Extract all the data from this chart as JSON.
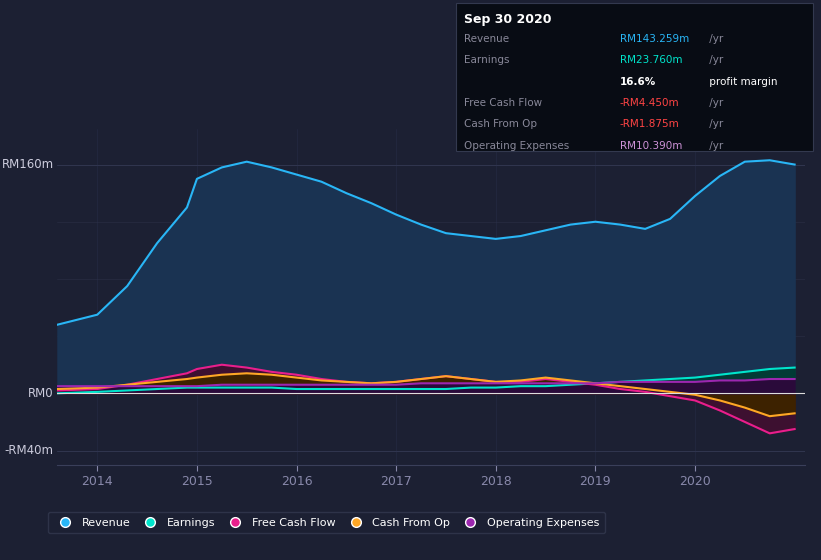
{
  "bg_color": "#1c2033",
  "plot_bg_color": "#1c2033",
  "ylim": [
    -50,
    185
  ],
  "xlim": [
    2013.6,
    2021.1
  ],
  "xticks": [
    2014,
    2015,
    2016,
    2017,
    2018,
    2019,
    2020
  ],
  "grid_color": "#2e3352",
  "hline_color": "#3a3f5a",
  "series": {
    "revenue": {
      "color": "#29b6f6",
      "fill_color": "#1a3352",
      "label": "Revenue",
      "x": [
        2013.6,
        2014.0,
        2014.3,
        2014.6,
        2014.9,
        2015.0,
        2015.25,
        2015.5,
        2015.75,
        2016.0,
        2016.25,
        2016.5,
        2016.75,
        2017.0,
        2017.25,
        2017.5,
        2017.75,
        2018.0,
        2018.25,
        2018.5,
        2018.75,
        2019.0,
        2019.25,
        2019.5,
        2019.75,
        2020.0,
        2020.25,
        2020.5,
        2020.75,
        2021.0
      ],
      "y": [
        48,
        55,
        75,
        105,
        130,
        150,
        158,
        162,
        158,
        153,
        148,
        140,
        133,
        125,
        118,
        112,
        110,
        108,
        110,
        114,
        118,
        120,
        118,
        115,
        122,
        138,
        152,
        162,
        163,
        160
      ]
    },
    "earnings": {
      "color": "#00e5cc",
      "fill_color": "#003d33",
      "label": "Earnings",
      "x": [
        2013.6,
        2014.0,
        2014.3,
        2014.6,
        2014.9,
        2015.0,
        2015.25,
        2015.5,
        2015.75,
        2016.0,
        2016.25,
        2016.5,
        2016.75,
        2017.0,
        2017.25,
        2017.5,
        2017.75,
        2018.0,
        2018.25,
        2018.5,
        2018.75,
        2019.0,
        2019.25,
        2019.5,
        2019.75,
        2020.0,
        2020.25,
        2020.5,
        2020.75,
        2021.0
      ],
      "y": [
        0,
        1,
        2,
        3,
        4,
        4,
        4,
        4,
        4,
        3,
        3,
        3,
        3,
        3,
        3,
        3,
        4,
        4,
        5,
        5,
        6,
        7,
        8,
        9,
        10,
        11,
        13,
        15,
        17,
        18
      ]
    },
    "free_cash_flow": {
      "color": "#e91e8c",
      "fill_color": "#3d1030",
      "label": "Free Cash Flow",
      "x": [
        2013.6,
        2014.0,
        2014.3,
        2014.6,
        2014.9,
        2015.0,
        2015.25,
        2015.5,
        2015.75,
        2016.0,
        2016.25,
        2016.5,
        2016.75,
        2017.0,
        2017.25,
        2017.5,
        2017.75,
        2018.0,
        2018.25,
        2018.5,
        2018.75,
        2019.0,
        2019.25,
        2019.5,
        2019.75,
        2020.0,
        2020.25,
        2020.5,
        2020.75,
        2021.0
      ],
      "y": [
        2,
        3,
        6,
        10,
        14,
        17,
        20,
        18,
        15,
        13,
        10,
        8,
        7,
        8,
        10,
        12,
        10,
        8,
        8,
        10,
        8,
        6,
        3,
        1,
        -2,
        -5,
        -12,
        -20,
        -28,
        -25
      ]
    },
    "cash_from_op": {
      "color": "#ffa726",
      "fill_color": "#3d2200",
      "label": "Cash From Op",
      "x": [
        2013.6,
        2014.0,
        2014.3,
        2014.6,
        2014.9,
        2015.0,
        2015.25,
        2015.5,
        2015.75,
        2016.0,
        2016.25,
        2016.5,
        2016.75,
        2017.0,
        2017.25,
        2017.5,
        2017.75,
        2018.0,
        2018.25,
        2018.5,
        2018.75,
        2019.0,
        2019.25,
        2019.5,
        2019.75,
        2020.0,
        2020.25,
        2020.5,
        2020.75,
        2021.0
      ],
      "y": [
        3,
        4,
        6,
        8,
        10,
        11,
        13,
        14,
        13,
        11,
        9,
        8,
        7,
        8,
        10,
        12,
        10,
        8,
        9,
        11,
        9,
        7,
        5,
        3,
        1,
        -1,
        -5,
        -10,
        -16,
        -14
      ]
    },
    "operating_expenses": {
      "color": "#9c27b0",
      "fill_color": "#2a0a3a",
      "label": "Operating Expenses",
      "x": [
        2013.6,
        2014.0,
        2014.3,
        2014.6,
        2014.9,
        2015.0,
        2015.25,
        2015.5,
        2015.75,
        2016.0,
        2016.25,
        2016.5,
        2016.75,
        2017.0,
        2017.25,
        2017.5,
        2017.75,
        2018.0,
        2018.25,
        2018.5,
        2018.75,
        2019.0,
        2019.25,
        2019.5,
        2019.75,
        2020.0,
        2020.25,
        2020.5,
        2020.75,
        2021.0
      ],
      "y": [
        5,
        5,
        5,
        5,
        5,
        5,
        6,
        6,
        6,
        6,
        6,
        6,
        6,
        6,
        7,
        7,
        7,
        7,
        7,
        7,
        7,
        7,
        8,
        8,
        8,
        8,
        9,
        9,
        10,
        10
      ]
    }
  },
  "legend": [
    {
      "label": "Revenue",
      "color": "#29b6f6"
    },
    {
      "label": "Earnings",
      "color": "#00e5cc"
    },
    {
      "label": "Free Cash Flow",
      "color": "#e91e8c"
    },
    {
      "label": "Cash From Op",
      "color": "#ffa726"
    },
    {
      "label": "Operating Expenses",
      "color": "#9c27b0"
    }
  ],
  "info_box_title": "Sep 30 2020",
  "info_rows": [
    {
      "label": "Revenue",
      "value": "RM143.259m",
      "suffix": " /yr",
      "value_color": "#29b6f6"
    },
    {
      "label": "Earnings",
      "value": "RM23.760m",
      "suffix": " /yr",
      "value_color": "#00e5cc"
    },
    {
      "label": "",
      "value": "16.6%",
      "suffix": " profit margin",
      "value_color": "#ffffff",
      "bold": true
    },
    {
      "label": "Free Cash Flow",
      "value": "-RM4.450m",
      "suffix": " /yr",
      "value_color": "#ff4444"
    },
    {
      "label": "Cash From Op",
      "value": "-RM1.875m",
      "suffix": " /yr",
      "value_color": "#ff4444"
    },
    {
      "label": "Operating Expenses",
      "value": "RM10.390m",
      "suffix": " /yr",
      "value_color": "#ce93d8"
    }
  ]
}
